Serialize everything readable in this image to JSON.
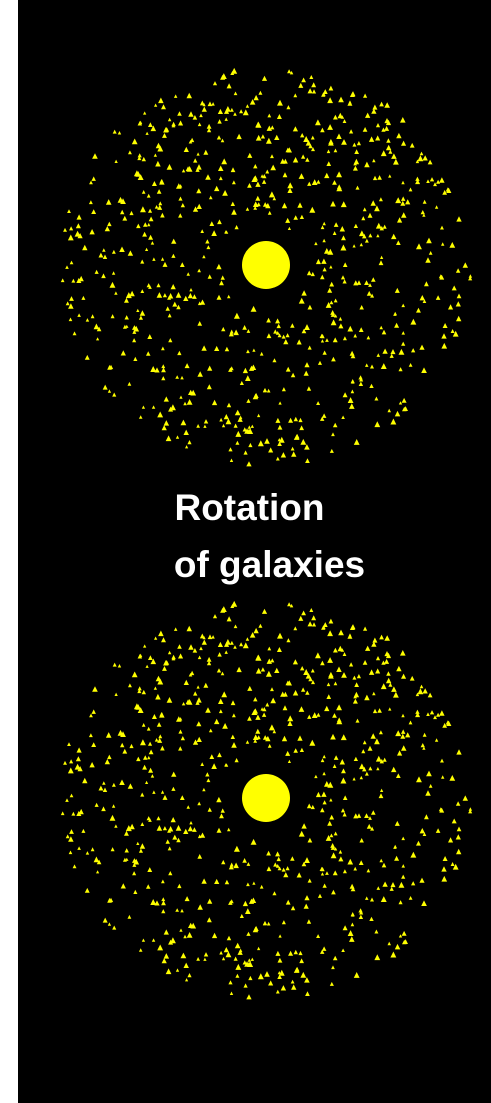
{
  "title": {
    "line1": "Rotation",
    "line2": "of galaxies"
  },
  "colors": {
    "background": "#000000",
    "star": "#ffff00",
    "core": "#ffff00",
    "text": "#ffffff"
  },
  "galaxies": [
    {
      "name": "galaxy-top",
      "star_count": 700
    },
    {
      "name": "galaxy-bottom",
      "star_count": 700
    }
  ]
}
